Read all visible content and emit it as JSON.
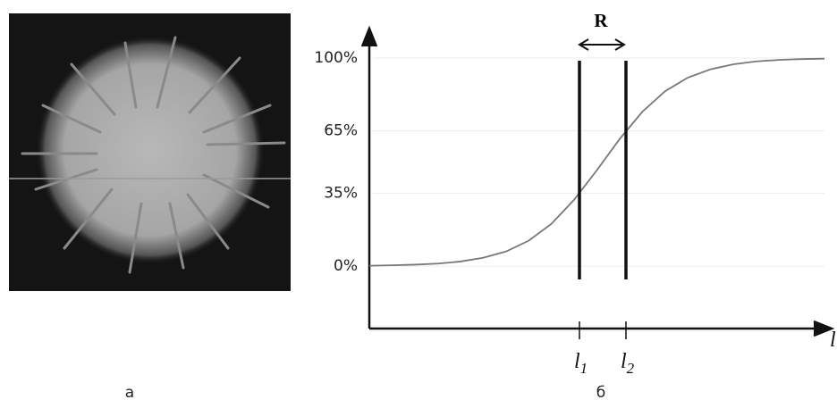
{
  "chart_data": {
    "type": "line",
    "categories": [
      null,
      null,
      null,
      null,
      null,
      null,
      null,
      null,
      null,
      null,
      null,
      null,
      null,
      null,
      null,
      null,
      null,
      null,
      null,
      null,
      null
    ],
    "values": [
      0.2,
      0.4,
      0.7,
      1.2,
      2.2,
      4.0,
      7.0,
      12.2,
      20.3,
      31.9,
      46.1,
      61.1,
      74.2,
      84.1,
      90.6,
      94.6,
      97.0,
      98.4,
      99.1,
      99.5,
      99.7
    ],
    "color": "#777777",
    "ylim": [
      -30,
      113
    ],
    "yticks": [
      {
        "value": 0,
        "label": "0%"
      },
      {
        "value": 35,
        "label": "35%"
      },
      {
        "value": 65,
        "label": "65%"
      },
      {
        "value": 100,
        "label": "100%"
      }
    ],
    "grid": true,
    "x_label": "l",
    "markers": [
      {
        "label": "l",
        "index": "1"
      },
      {
        "label": "l",
        "index": "2"
      }
    ],
    "annotation": "R",
    "panel_labels": [
      "а",
      "б"
    ]
  }
}
